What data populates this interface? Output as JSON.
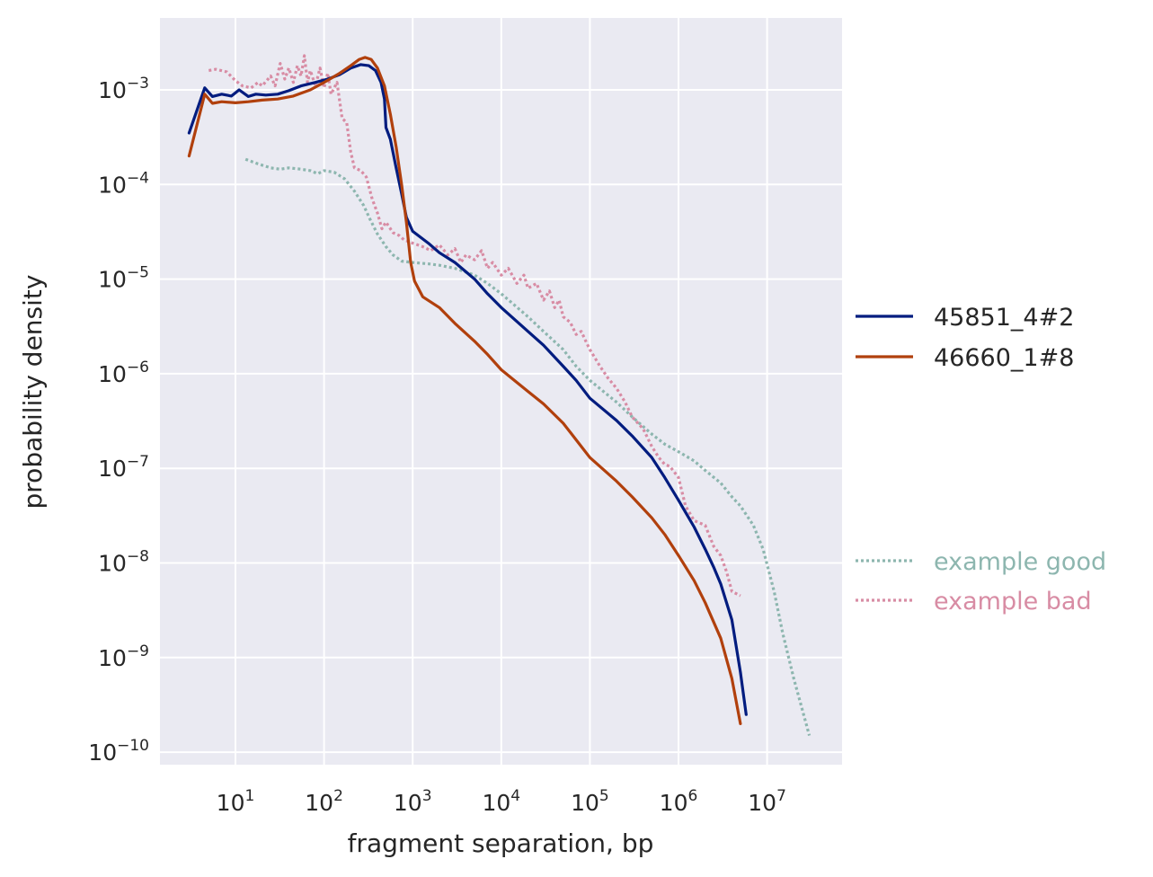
{
  "chart_data": {
    "type": "line",
    "title": "",
    "xlabel": "fragment separation, bp",
    "ylabel": "probability density",
    "x_scale": "log",
    "y_scale": "log",
    "xlim": [
      1.5,
      70000000
    ],
    "ylim": [
      5e-11,
      0.006
    ],
    "grid": true,
    "background": "#EAEAF2",
    "legend_placement": "right",
    "x_ticks": [
      {
        "value": 10,
        "base": "10",
        "exp": "1"
      },
      {
        "value": 100,
        "base": "10",
        "exp": "2"
      },
      {
        "value": 1000,
        "base": "10",
        "exp": "3"
      },
      {
        "value": 10000,
        "base": "10",
        "exp": "4"
      },
      {
        "value": 100000,
        "base": "10",
        "exp": "5"
      },
      {
        "value": 1000000,
        "base": "10",
        "exp": "6"
      },
      {
        "value": 10000000,
        "base": "10",
        "exp": "7"
      }
    ],
    "y_ticks": [
      {
        "value": 1e-10,
        "base": "10",
        "exp": "−10"
      },
      {
        "value": 1e-09,
        "base": "10",
        "exp": "−9"
      },
      {
        "value": 1e-08,
        "base": "10",
        "exp": "−8"
      },
      {
        "value": 1e-07,
        "base": "10",
        "exp": "−7"
      },
      {
        "value": 1e-06,
        "base": "10",
        "exp": "−6"
      },
      {
        "value": 1e-05,
        "base": "10",
        "exp": "−5"
      },
      {
        "value": 0.0001,
        "base": "10",
        "exp": "−4"
      },
      {
        "value": 0.001,
        "base": "10",
        "exp": "−3"
      }
    ],
    "series": [
      {
        "name": "45851_4#2",
        "color": "#001C7F",
        "style": "solid",
        "legend_group": "top",
        "points": [
          [
            3,
            0.00035
          ],
          [
            4.5,
            0.00105
          ],
          [
            5.5,
            0.00085
          ],
          [
            7,
            0.0009
          ],
          [
            9,
            0.00086
          ],
          [
            11,
            0.001
          ],
          [
            14,
            0.00085
          ],
          [
            17,
            0.0009
          ],
          [
            22,
            0.00088
          ],
          [
            30,
            0.0009
          ],
          [
            40,
            0.00098
          ],
          [
            55,
            0.0011
          ],
          [
            80,
            0.0012
          ],
          [
            110,
            0.0013
          ],
          [
            150,
            0.00145
          ],
          [
            200,
            0.0017
          ],
          [
            260,
            0.00185
          ],
          [
            320,
            0.0018
          ],
          [
            380,
            0.0016
          ],
          [
            440,
            0.0012
          ],
          [
            480,
            0.0008
          ],
          [
            500,
            0.0004
          ],
          [
            560,
            0.0003
          ],
          [
            650,
            0.00015
          ],
          [
            750,
            8e-05
          ],
          [
            850,
            4.5e-05
          ],
          [
            1000,
            3.2e-05
          ],
          [
            1500,
            2.4e-05
          ],
          [
            2000,
            1.9e-05
          ],
          [
            3000,
            1.5e-05
          ],
          [
            5000,
            1e-05
          ],
          [
            7000,
            7e-06
          ],
          [
            10000,
            5e-06
          ],
          [
            20000,
            2.8e-06
          ],
          [
            30000,
            2e-06
          ],
          [
            50000,
            1.2e-06
          ],
          [
            70000,
            8.5e-07
          ],
          [
            100000,
            5.5e-07
          ],
          [
            200000,
            3.2e-07
          ],
          [
            300000,
            2.2e-07
          ],
          [
            500000,
            1.3e-07
          ],
          [
            700000,
            8e-08
          ],
          [
            1000000,
            4.6e-08
          ],
          [
            1500000,
            2.4e-08
          ],
          [
            2000000,
            1.4e-08
          ],
          [
            2500000,
            9e-09
          ],
          [
            3000000,
            6e-09
          ],
          [
            4000000,
            2.5e-09
          ],
          [
            5000000,
            7e-10
          ],
          [
            5800000,
            2.5e-10
          ]
        ]
      },
      {
        "name": "46660_1#8",
        "color": "#B1400D",
        "style": "solid",
        "legend_group": "top",
        "points": [
          [
            3,
            0.0002
          ],
          [
            4.5,
            0.0009
          ],
          [
            5.5,
            0.00072
          ],
          [
            7,
            0.00075
          ],
          [
            10,
            0.00073
          ],
          [
            14,
            0.00075
          ],
          [
            20,
            0.00078
          ],
          [
            30,
            0.0008
          ],
          [
            45,
            0.00086
          ],
          [
            70,
            0.001
          ],
          [
            100,
            0.0012
          ],
          [
            150,
            0.0015
          ],
          [
            200,
            0.0018
          ],
          [
            250,
            0.0021
          ],
          [
            290,
            0.0022
          ],
          [
            340,
            0.0021
          ],
          [
            400,
            0.0017
          ],
          [
            480,
            0.0011
          ],
          [
            560,
            0.00055
          ],
          [
            650,
            0.00025
          ],
          [
            750,
            0.0001
          ],
          [
            850,
            4e-05
          ],
          [
            950,
            1.5e-05
          ],
          [
            1050,
            9.5e-06
          ],
          [
            1300,
            6.5e-06
          ],
          [
            2000,
            5e-06
          ],
          [
            3000,
            3.4e-06
          ],
          [
            5000,
            2.2e-06
          ],
          [
            7000,
            1.6e-06
          ],
          [
            10000,
            1.1e-06
          ],
          [
            20000,
            6.5e-07
          ],
          [
            30000,
            4.8e-07
          ],
          [
            50000,
            3e-07
          ],
          [
            70000,
            2e-07
          ],
          [
            100000,
            1.3e-07
          ],
          [
            200000,
            7.3e-08
          ],
          [
            300000,
            5e-08
          ],
          [
            500000,
            3e-08
          ],
          [
            700000,
            2e-08
          ],
          [
            1000000,
            1.2e-08
          ],
          [
            1500000,
            6.5e-09
          ],
          [
            2000000,
            3.8e-09
          ],
          [
            3000000,
            1.6e-09
          ],
          [
            4000000,
            6e-10
          ],
          [
            5000000,
            2e-10
          ]
        ]
      },
      {
        "name": "example good",
        "color": "#8DB6AF",
        "style": "dotted",
        "legend_group": "bottom",
        "points": [
          [
            13,
            0.000185
          ],
          [
            18,
            0.000165
          ],
          [
            25,
            0.00015
          ],
          [
            32,
            0.000145
          ],
          [
            40,
            0.00015
          ],
          [
            55,
            0.000145
          ],
          [
            70,
            0.00014
          ],
          [
            85,
            0.00013
          ],
          [
            100,
            0.00014
          ],
          [
            130,
            0.000135
          ],
          [
            170,
            0.000115
          ],
          [
            220,
            8.5e-05
          ],
          [
            280,
            6e-05
          ],
          [
            330,
            4.3e-05
          ],
          [
            400,
            3e-05
          ],
          [
            500,
            2.2e-05
          ],
          [
            600,
            1.8e-05
          ],
          [
            750,
            1.55e-05
          ],
          [
            1000,
            1.5e-05
          ],
          [
            1500,
            1.45e-05
          ],
          [
            2000,
            1.4e-05
          ],
          [
            3000,
            1.3e-05
          ],
          [
            5000,
            1.1e-05
          ],
          [
            7000,
            9e-06
          ],
          [
            10000,
            7e-06
          ],
          [
            20000,
            4e-06
          ],
          [
            30000,
            2.8e-06
          ],
          [
            50000,
            1.8e-06
          ],
          [
            70000,
            1.2e-06
          ],
          [
            100000,
            8.5e-07
          ],
          [
            200000,
            5e-07
          ],
          [
            300000,
            3.5e-07
          ],
          [
            500000,
            2.3e-07
          ],
          [
            700000,
            1.8e-07
          ],
          [
            1000000,
            1.5e-07
          ],
          [
            1500000,
            1.2e-07
          ],
          [
            2000000,
            9.5e-08
          ],
          [
            3000000,
            7e-08
          ],
          [
            4000000,
            5e-08
          ],
          [
            5000000,
            4e-08
          ],
          [
            7000000,
            2.5e-08
          ],
          [
            9000000,
            1.4e-08
          ],
          [
            12000000,
            5e-09
          ],
          [
            15000000,
            1.8e-09
          ],
          [
            20000000,
            6e-10
          ],
          [
            25000000,
            2.8e-10
          ],
          [
            30000000,
            1.5e-10
          ]
        ]
      },
      {
        "name": "example bad",
        "color": "#D88CA4",
        "style": "dotted",
        "legend_group": "bottom",
        "points": [
          [
            5,
            0.0016
          ],
          [
            6,
            0.00165
          ],
          [
            8,
            0.00155
          ],
          [
            10,
            0.00125
          ],
          [
            12,
            0.0011
          ],
          [
            15,
            0.00105
          ],
          [
            18,
            0.0012
          ],
          [
            20,
            0.0011
          ],
          [
            25,
            0.0014
          ],
          [
            28,
            0.0011
          ],
          [
            32,
            0.0019
          ],
          [
            36,
            0.0013
          ],
          [
            40,
            0.0017
          ],
          [
            45,
            0.0012
          ],
          [
            50,
            0.0018
          ],
          [
            55,
            0.0014
          ],
          [
            60,
            0.0023
          ],
          [
            65,
            0.0012
          ],
          [
            70,
            0.0016
          ],
          [
            80,
            0.0011
          ],
          [
            90,
            0.0017
          ],
          [
            100,
            0.00105
          ],
          [
            110,
            0.0015
          ],
          [
            120,
            0.0009
          ],
          [
            140,
            0.0012
          ],
          [
            160,
            0.0005
          ],
          [
            180,
            0.00045
          ],
          [
            200,
            0.00022
          ],
          [
            220,
            0.00015
          ],
          [
            260,
            0.00014
          ],
          [
            300,
            0.00012
          ],
          [
            350,
            7e-05
          ],
          [
            400,
            5e-05
          ],
          [
            450,
            3.4e-05
          ],
          [
            500,
            4e-05
          ],
          [
            600,
            3.1e-05
          ],
          [
            700,
            2.9e-05
          ],
          [
            800,
            2.6e-05
          ],
          [
            1000,
            2.4e-05
          ],
          [
            1300,
            2.2e-05
          ],
          [
            1600,
            2e-05
          ],
          [
            2000,
            2.3e-05
          ],
          [
            2500,
            1.8e-05
          ],
          [
            3000,
            2.1e-05
          ],
          [
            3500,
            1.5e-05
          ],
          [
            4000,
            1.8e-05
          ],
          [
            5000,
            1.6e-05
          ],
          [
            6000,
            2e-05
          ],
          [
            7000,
            1.3e-05
          ],
          [
            8000,
            1.5e-05
          ],
          [
            10000,
            1.1e-05
          ],
          [
            12000,
            1.3e-05
          ],
          [
            15000,
            9e-06
          ],
          [
            18000,
            1.1e-05
          ],
          [
            20000,
            8e-06
          ],
          [
            25000,
            9e-06
          ],
          [
            30000,
            6e-06
          ],
          [
            35000,
            7.5e-06
          ],
          [
            40000,
            5e-06
          ],
          [
            45000,
            6e-06
          ],
          [
            50000,
            4e-06
          ],
          [
            60000,
            3.5e-06
          ],
          [
            70000,
            2.6e-06
          ],
          [
            80000,
            2.8e-06
          ],
          [
            90000,
            2.2e-06
          ],
          [
            100000,
            1.8e-06
          ],
          [
            130000,
            1.2e-06
          ],
          [
            160000,
            9e-07
          ],
          [
            200000,
            7e-07
          ],
          [
            250000,
            5e-07
          ],
          [
            300000,
            3.5e-07
          ],
          [
            400000,
            2.6e-07
          ],
          [
            500000,
            1.7e-07
          ],
          [
            600000,
            1.3e-07
          ],
          [
            700000,
            1.1e-07
          ],
          [
            800000,
            1.05e-07
          ],
          [
            1000000,
            8e-08
          ],
          [
            1200000,
            4e-08
          ],
          [
            1500000,
            2.8e-08
          ],
          [
            2000000,
            2.5e-08
          ],
          [
            2500000,
            1.5e-08
          ],
          [
            3000000,
            1.2e-08
          ],
          [
            3500000,
            8e-09
          ],
          [
            4000000,
            5e-09
          ],
          [
            5000000,
            4.5e-09
          ]
        ]
      }
    ]
  }
}
